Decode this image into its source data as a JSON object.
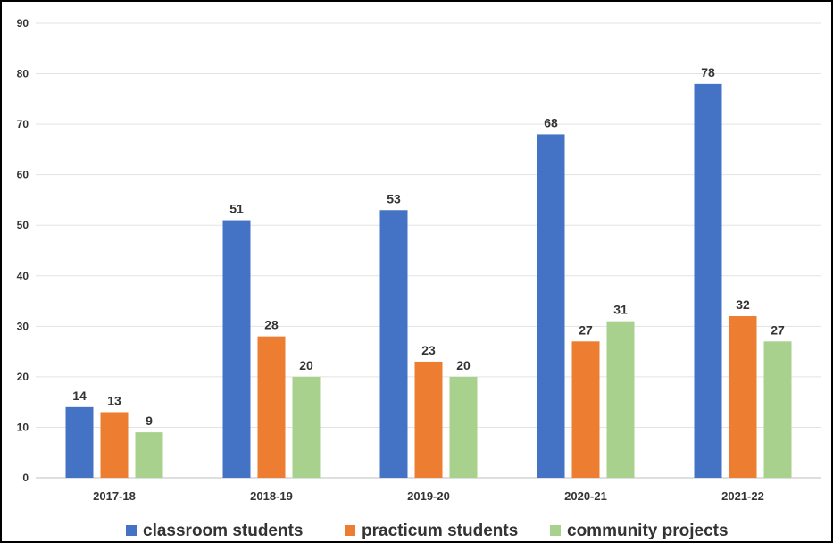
{
  "chart_data": {
    "type": "bar",
    "title": "",
    "xlabel": "",
    "ylabel": "",
    "ylim": [
      0,
      90
    ],
    "yticks": [
      0,
      10,
      20,
      30,
      40,
      50,
      60,
      70,
      80,
      90
    ],
    "grid": true,
    "legend_position": "bottom",
    "categories": [
      "2017-18",
      "2018-19",
      "2019-20",
      "2020-21",
      "2021-22"
    ],
    "series": [
      {
        "name": "classroom students",
        "color": "#4472c4",
        "values": [
          14,
          51,
          53,
          68,
          78
        ]
      },
      {
        "name": "practicum students",
        "color": "#ed7d31",
        "values": [
          13,
          28,
          23,
          27,
          32
        ]
      },
      {
        "name": "community projects",
        "color": "#a9d18e",
        "values": [
          9,
          20,
          20,
          31,
          27
        ]
      }
    ]
  }
}
